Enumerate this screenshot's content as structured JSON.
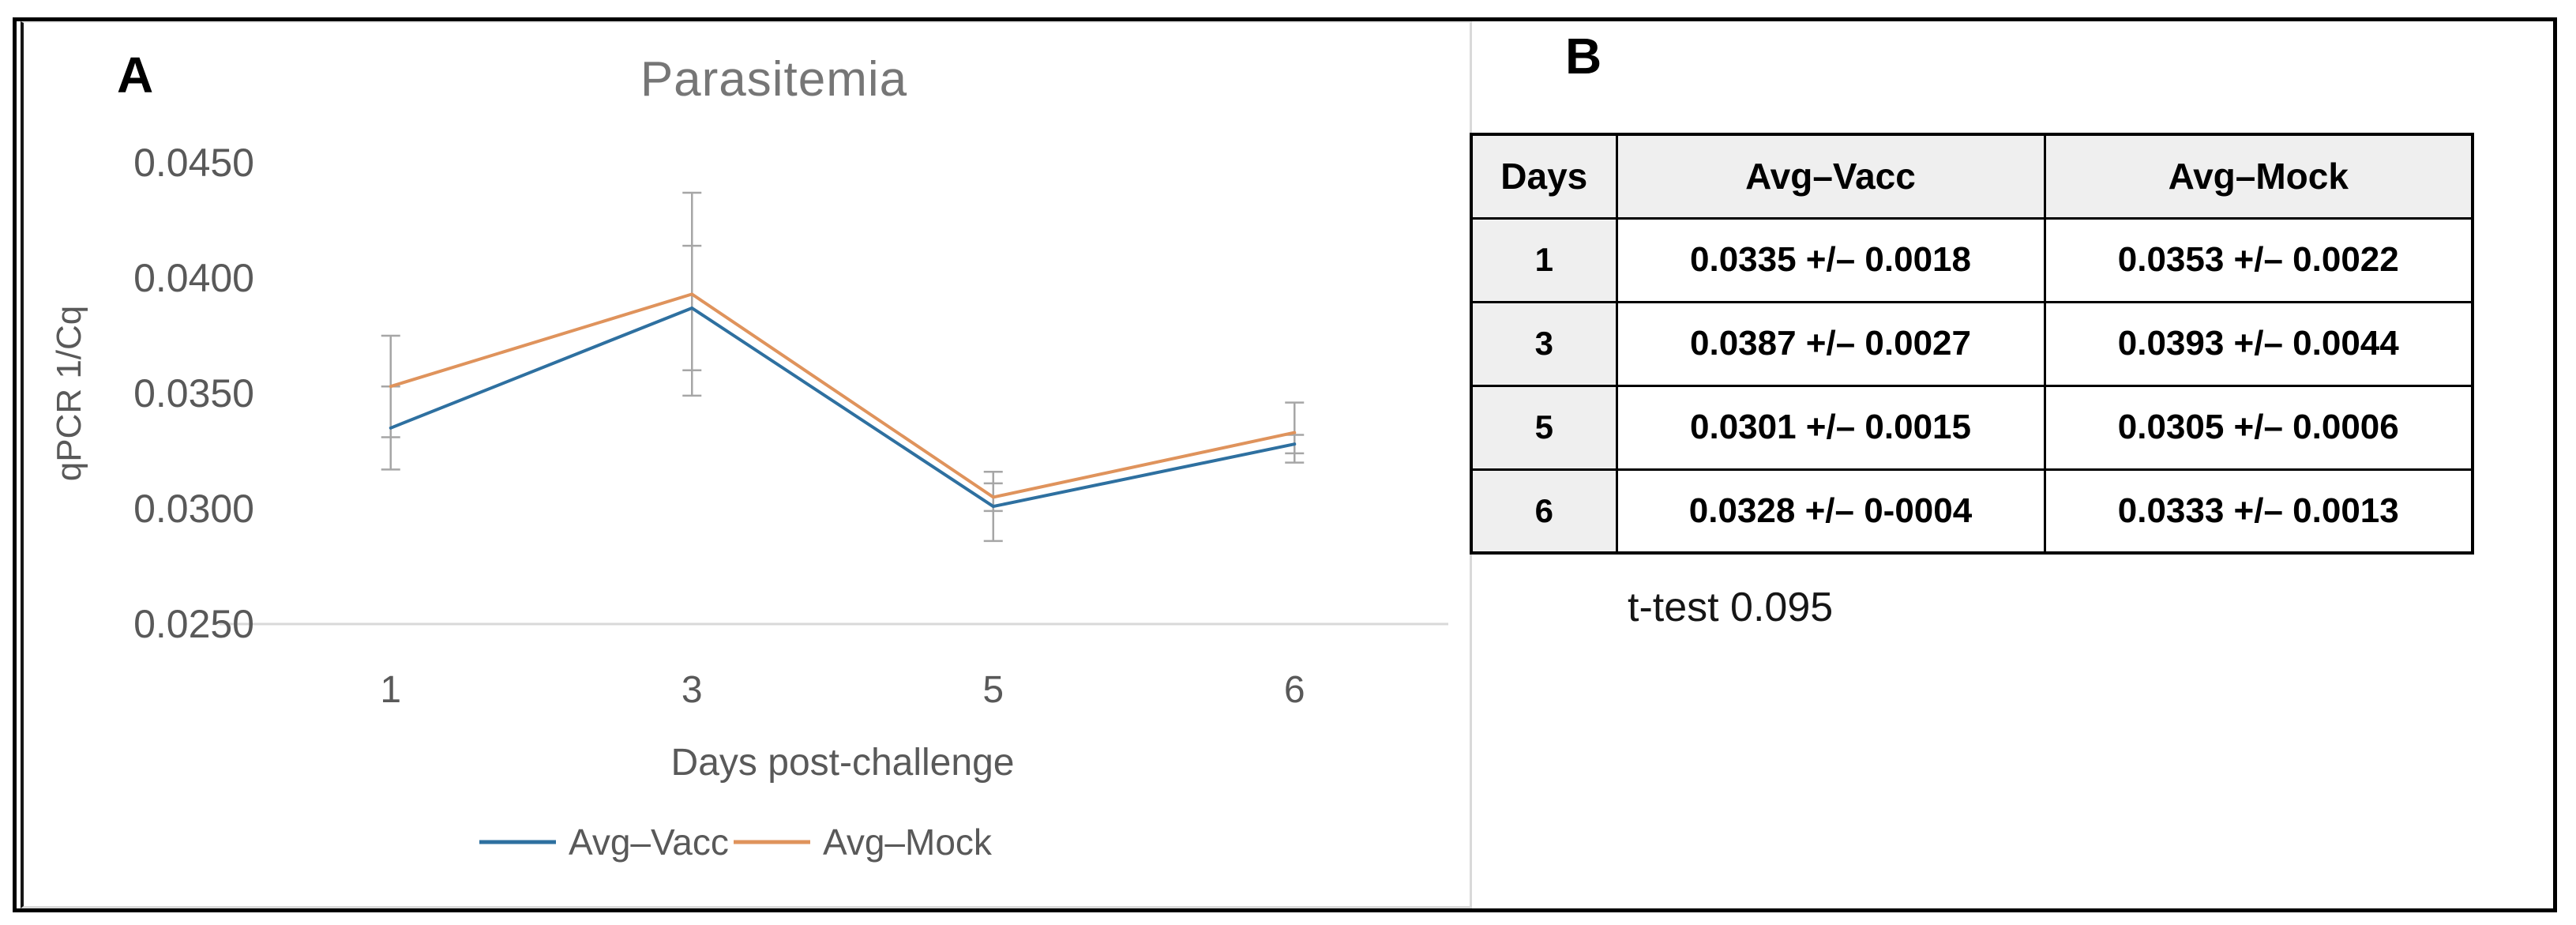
{
  "figure": {
    "panel_a_label": "A",
    "panel_b_label": "B"
  },
  "chart_data": {
    "type": "line",
    "title": "Parasitemia",
    "xlabel": "Days post-challenge",
    "ylabel": "qPCR 1/Cq",
    "categories": [
      "1",
      "3",
      "5",
      "6"
    ],
    "series": [
      {
        "name": "Avg–Vacc",
        "color": "#2e70a0",
        "values": [
          0.0335,
          0.0387,
          0.0301,
          0.0328
        ],
        "errors": [
          0.0018,
          0.0027,
          0.0015,
          0.0004
        ]
      },
      {
        "name": "Avg–Mock",
        "color": "#df935c",
        "values": [
          0.0353,
          0.0393,
          0.0305,
          0.0333
        ],
        "errors": [
          0.0022,
          0.0044,
          0.0006,
          0.0013
        ]
      }
    ],
    "ylim": [
      0.025,
      0.045
    ],
    "ytick_step": 0.005,
    "ytick_labels": [
      "0.0450",
      "0.0400",
      "0.0350",
      "0.0300",
      "0.0250"
    ],
    "grid": "baseline-only",
    "legend_position": "bottom",
    "error_bar_color": "#a6a6a6",
    "axis_line_color": "#d9d9d9",
    "axis_text_color": "#595959",
    "title_color": "#767676"
  },
  "panel_b": {
    "table": {
      "headers": [
        "Days",
        "Avg–Vacc",
        "Avg–Mock"
      ],
      "rows": [
        [
          "1",
          "0.0335 +/– 0.0018",
          "0.0353 +/– 0.0022"
        ],
        [
          "3",
          "0.0387 +/– 0.0027",
          "0.0393 +/– 0.0044"
        ],
        [
          "5",
          "0.0301 +/– 0.0015",
          "0.0305 +/– 0.0006"
        ],
        [
          "6",
          "0.0328 +/– 0-0004",
          "0.0333 +/– 0.0013"
        ]
      ]
    },
    "note": "t-test 0.095"
  }
}
